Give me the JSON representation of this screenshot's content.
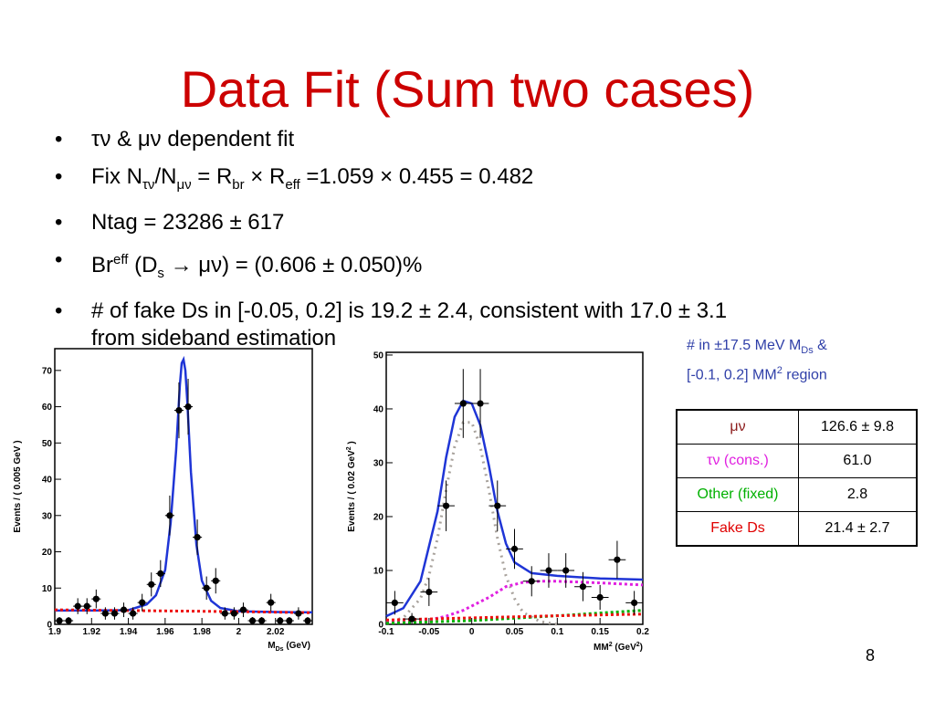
{
  "slide": {
    "title": "Data Fit (Sum two cases)",
    "page_number": "8",
    "bullets": [
      {
        "a": "τν",
        "b": " & ",
        "c": "μν",
        "d": " dependent fit"
      },
      {
        "a": "Fix N",
        "b": "τν",
        "c": "/N",
        "d": "μν",
        "e": " = R",
        "f": "br",
        "g": " × R",
        "h": "eff",
        "i": " =1.059 × 0.455 = 0.482"
      },
      {
        "a": "Ntag = 23286 ± 617"
      },
      {
        "a": "Br",
        "b": "eff",
        "c": " (D",
        "d": "s",
        "e": " → μν) = (0.606 ± 0.050)%"
      },
      {
        "a": "# of fake Ds in [-0.05, 0.2] is 19.2 ± 2.4, consistent with 17.0 ± 3.1",
        "b": "from sideband estimation"
      }
    ],
    "note": {
      "a": "# in ±17.5 MeV M",
      "b": "Ds",
      "c": " &",
      "d": "[-0.1, 0.2] MM",
      "e": "2",
      "f": " region"
    },
    "table": [
      {
        "label": "μν",
        "value": "126.6 ± 9.8",
        "color": "#8b1a1a"
      },
      {
        "label": "τν (cons.)",
        "value": "61.0",
        "color": "#e020e0"
      },
      {
        "label": "Other (fixed)",
        "value": "2.8",
        "color": "#00b000"
      },
      {
        "label": "Fake Ds",
        "value": "21.4 ± 2.7",
        "color": "#e00000"
      }
    ]
  },
  "chart_data": [
    {
      "type": "scatter",
      "xlabel": "M",
      "xlabel_sub": "Ds",
      "xlabel_unit": " (GeV)",
      "ylabel": "Events / ( 0.005 GeV )",
      "xlim": [
        1.9,
        2.04
      ],
      "ylim": [
        0,
        76
      ],
      "xticks": [
        1.9,
        1.92,
        1.94,
        1.96,
        1.98,
        2,
        2.02
      ],
      "xtick_labels": [
        "1.9",
        "1.92",
        "1.94",
        "1.96",
        "1.98",
        "2",
        "2.02"
      ],
      "yticks": [
        0,
        10,
        20,
        30,
        40,
        50,
        60,
        70
      ],
      "ytick_labels": [
        "0",
        "10",
        "20",
        "30",
        "40",
        "50",
        "60",
        "70"
      ],
      "data": {
        "x": [
          1.9025,
          1.9075,
          1.9125,
          1.9175,
          1.9225,
          1.9275,
          1.9325,
          1.9375,
          1.9425,
          1.9475,
          1.9525,
          1.9575,
          1.9625,
          1.9675,
          1.9725,
          1.9775,
          1.9825,
          1.9875,
          1.9925,
          1.9975,
          2.0025,
          2.0075,
          2.0125,
          2.0175,
          2.0225,
          2.0275,
          2.0325,
          2.0375
        ],
        "y": [
          1,
          1,
          5,
          5,
          7,
          3,
          3,
          4,
          3,
          6,
          11,
          14,
          30,
          59,
          60,
          24,
          10,
          12,
          3,
          3,
          4,
          1,
          1,
          6,
          1,
          1,
          3,
          1
        ],
        "err": [
          1,
          1,
          2.2,
          2.2,
          2.6,
          1.7,
          1.7,
          2,
          1.7,
          2.4,
          3.3,
          3.7,
          5.5,
          7.7,
          7.7,
          4.9,
          3.2,
          3.5,
          1.7,
          1.7,
          2,
          1,
          1,
          2.4,
          1,
          1,
          1.7,
          1
        ]
      },
      "curves": [
        {
          "name": "fit",
          "color": "#1f35d6",
          "style": "solid",
          "x": [
            1.9,
            1.92,
            1.94,
            1.95,
            1.955,
            1.96,
            1.963,
            1.966,
            1.968,
            1.969,
            1.97,
            1.971,
            1.972,
            1.974,
            1.977,
            1.98,
            1.985,
            1.99,
            2.0,
            2.02,
            2.04
          ],
          "y": [
            3.8,
            3.8,
            3.9,
            5.5,
            8,
            15,
            28,
            48,
            66,
            72,
            73,
            70,
            62,
            42,
            22,
            12,
            6.5,
            4.5,
            3.6,
            3.4,
            3.3
          ]
        },
        {
          "name": "fake Ds",
          "color": "#ee1111",
          "style": "dotted",
          "x": [
            1.9,
            1.96,
            2.0,
            2.04
          ],
          "y": [
            4.0,
            3.7,
            3.5,
            3.2
          ]
        }
      ]
    },
    {
      "type": "scatter",
      "xlabel": "MM",
      "xlabel_sup": "2",
      "xlabel_unit": " (GeV",
      "xlabel_unit_sup": "2",
      "xlabel_end": ")",
      "ylabel": "Events / ( 0.02 GeV",
      "ylabel_sup": "2",
      "ylabel_end": " )",
      "xlim": [
        -0.1,
        0.2
      ],
      "ylim": [
        0,
        50.5
      ],
      "xticks": [
        -0.1,
        -0.05,
        0,
        0.05,
        0.1,
        0.15,
        0.2
      ],
      "xtick_labels": [
        "-0.1",
        "-0.05",
        "0",
        "0.05",
        "0.1",
        "0.15",
        "0.2"
      ],
      "yticks": [
        0,
        10,
        20,
        30,
        40,
        50
      ],
      "ytick_labels": [
        "0",
        "10",
        "20",
        "30",
        "40",
        "50"
      ],
      "data": {
        "x": [
          -0.09,
          -0.07,
          -0.05,
          -0.03,
          -0.01,
          0.01,
          0.03,
          0.05,
          0.07,
          0.09,
          0.11,
          0.13,
          0.15,
          0.17,
          0.19
        ],
        "y": [
          4,
          1,
          6,
          22,
          41,
          41,
          22,
          14,
          8,
          10,
          10,
          7,
          5,
          12,
          4
        ],
        "err": [
          2.2,
          1.1,
          2.6,
          4.7,
          6.4,
          6.4,
          4.7,
          3.7,
          2.8,
          3.2,
          3.2,
          2.7,
          2.3,
          3.5,
          2.2
        ]
      },
      "curves": [
        {
          "name": "total fit",
          "color": "#1f35d6",
          "style": "solid",
          "x": [
            -0.1,
            -0.08,
            -0.06,
            -0.04,
            -0.03,
            -0.02,
            -0.01,
            0.0,
            0.01,
            0.02,
            0.03,
            0.04,
            0.05,
            0.07,
            0.1,
            0.15,
            0.2
          ],
          "y": [
            1.5,
            3,
            8,
            21,
            31,
            38.5,
            41.5,
            41,
            37,
            29.5,
            21,
            15,
            11.5,
            9.5,
            9,
            8.5,
            8.3
          ]
        },
        {
          "name": "μν signal",
          "color": "#a8a29c",
          "style": "dotted",
          "x": [
            -0.1,
            -0.08,
            -0.06,
            -0.05,
            -0.04,
            -0.03,
            -0.02,
            -0.01,
            0.0,
            0.01,
            0.02,
            0.03,
            0.04,
            0.05,
            0.06,
            0.08,
            0.1
          ],
          "y": [
            0.3,
            1.2,
            4.8,
            9,
            16,
            25,
            33,
            37.5,
            37.5,
            33,
            25,
            16,
            9,
            4.8,
            2.2,
            0.5,
            0
          ],
          "dash": "2 5"
        },
        {
          "name": "τν",
          "color": "#e020e0",
          "style": "dotted",
          "x": [
            -0.1,
            -0.05,
            -0.03,
            -0.01,
            0.0,
            0.01,
            0.02,
            0.03,
            0.04,
            0.06,
            0.08,
            0.1,
            0.15,
            0.2
          ],
          "y": [
            0.4,
            0.8,
            1.5,
            2.6,
            3.4,
            4.2,
            5,
            6,
            7,
            7.8,
            8,
            8,
            7.7,
            7.3
          ]
        },
        {
          "name": "other",
          "color": "#00b000",
          "style": "dotted",
          "x": [
            -0.1,
            0.0,
            0.1,
            0.2
          ],
          "y": [
            0.2,
            0.7,
            1.6,
            2.6
          ]
        },
        {
          "name": "fake Ds",
          "color": "#ee1111",
          "style": "dotted",
          "x": [
            -0.1,
            0.0,
            0.1,
            0.2
          ],
          "y": [
            0.8,
            1.2,
            1.6,
            1.9
          ]
        }
      ]
    }
  ]
}
